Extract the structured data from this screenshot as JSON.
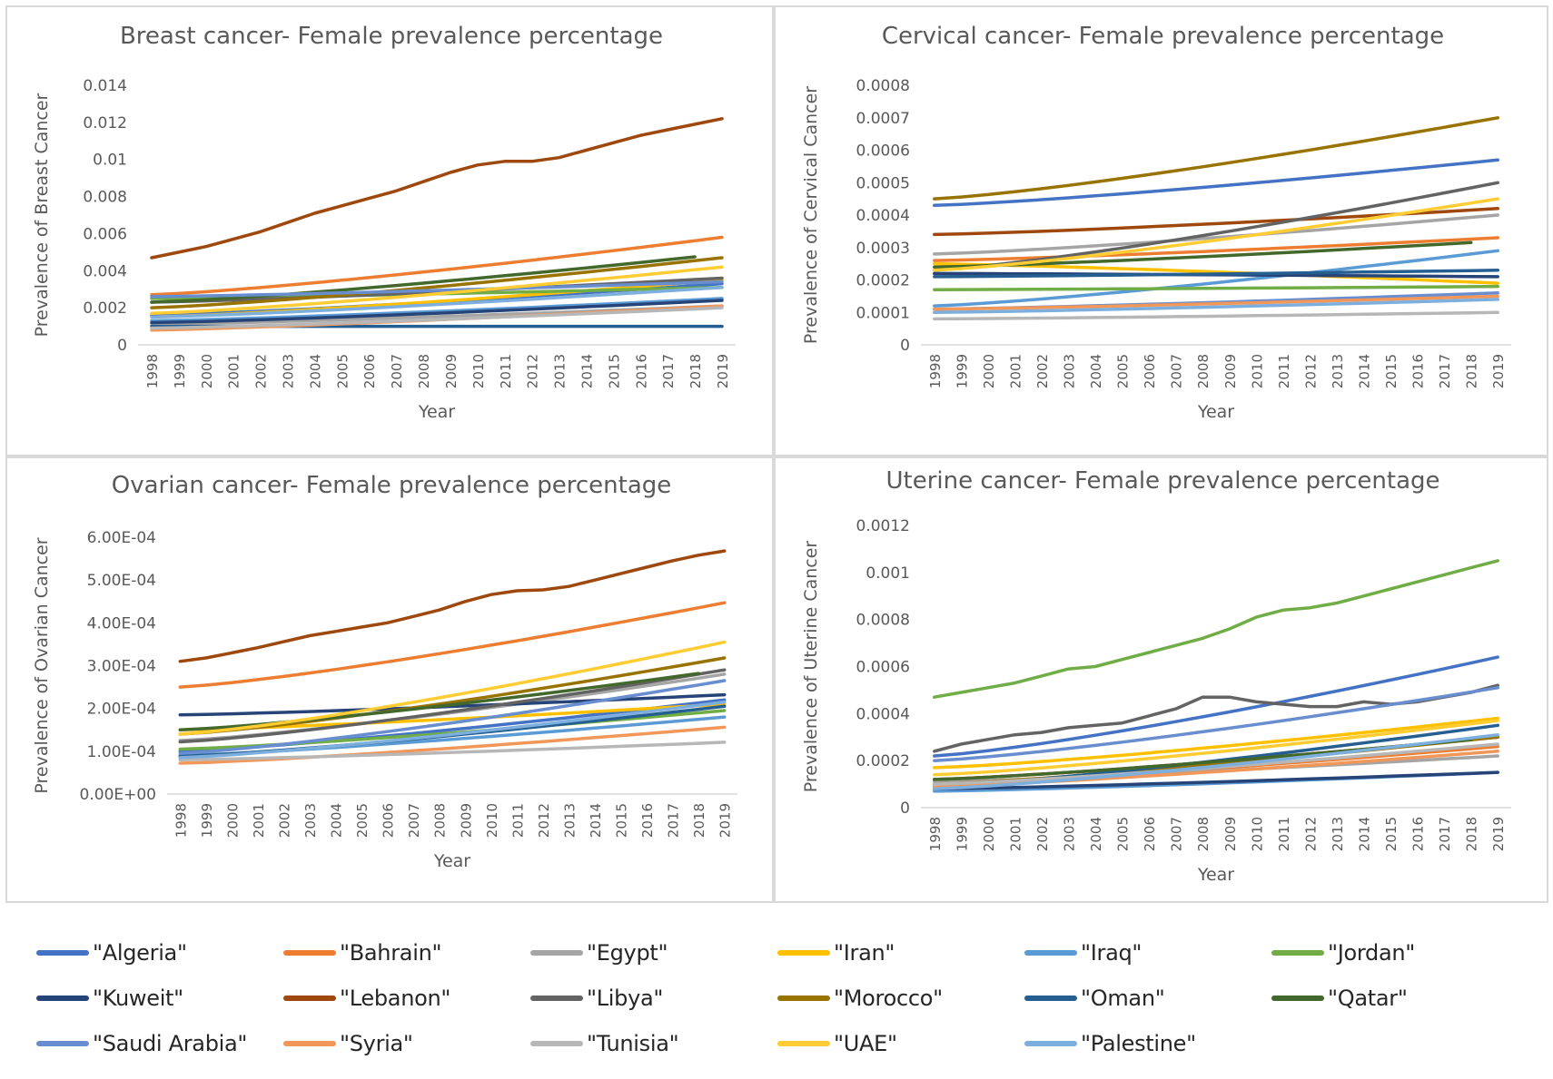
{
  "years": [
    "1998",
    "1999",
    "2000",
    "2001",
    "2002",
    "2003",
    "2004",
    "2005",
    "2006",
    "2007",
    "2008",
    "2009",
    "2010",
    "2011",
    "2012",
    "2013",
    "2014",
    "2015",
    "2016",
    "2017",
    "2018",
    "2019"
  ],
  "countries": [
    {
      "name": "\"Algeria\"",
      "color": "#4472c4"
    },
    {
      "name": "\"Bahrain\"",
      "color": "#ed7d31"
    },
    {
      "name": "\"Egypt\"",
      "color": "#a5a5a5"
    },
    {
      "name": "\"Iran\"",
      "color": "#ffc000"
    },
    {
      "name": "\"Iraq\"",
      "color": "#5b9bd5"
    },
    {
      "name": "\"Jordan\"",
      "color": "#70ad47"
    },
    {
      "name": "\"Kuweit\"",
      "color": "#264478"
    },
    {
      "name": "\"Lebanon\"",
      "color": "#9e480e"
    },
    {
      "name": "\"Libya\"",
      "color": "#636363"
    },
    {
      "name": "\"Morocco\"",
      "color": "#997300"
    },
    {
      "name": "\"Oman\"",
      "color": "#255e91"
    },
    {
      "name": "\"Qatar\"",
      "color": "#43682b"
    },
    {
      "name": "\"Saudi Arabia\"",
      "color": "#698ed0"
    },
    {
      "name": "\"Syria\"",
      "color": "#f1975a"
    },
    {
      "name": "\"Tunisia\"",
      "color": "#b7b7b7"
    },
    {
      "name": "\"UAE\"",
      "color": "#ffcd33"
    },
    {
      "name": "\"Palestine\"",
      "color": "#7cafdd"
    }
  ],
  "chart_data": [
    {
      "type": "line",
      "title": "Breast cancer- Female prevalence percentage",
      "xlabel": "Year",
      "ylabel": "Prevalence of Breast Cancer",
      "ylim": [
        0,
        0.014
      ],
      "yticks": [
        "0",
        "0.002",
        "0.004",
        "0.006",
        "0.008",
        "0.01",
        "0.012",
        "0.014"
      ],
      "series": [
        {
          "name": "\"Algeria\"",
          "start": 0.0016,
          "end": 0.0033
        },
        {
          "name": "\"Bahrain\"",
          "start": 0.0027,
          "end": 0.0058
        },
        {
          "name": "\"Egypt\"",
          "start": 0.0011,
          "end": 0.0021
        },
        {
          "name": "\"Iran\"",
          "start": 0.0015,
          "end": 0.0035
        },
        {
          "name": "\"Iraq\"",
          "start": 0.0013,
          "end": 0.0025
        },
        {
          "name": "\"Jordan\"",
          "start": 0.0025,
          "end": 0.0031
        },
        {
          "name": "\"Kuweit\"",
          "start": 0.0012,
          "end": 0.0024
        },
        {
          "name": "\"Lebanon\"",
          "values": [
            0.0047,
            0.005,
            0.0053,
            0.0057,
            0.0061,
            0.0066,
            0.0071,
            0.0075,
            0.0079,
            0.0083,
            0.0088,
            0.0093,
            0.0097,
            0.0099,
            0.0099,
            0.0101,
            0.0105,
            0.0109,
            0.0113,
            0.0116,
            0.0119,
            0.0122
          ]
        },
        {
          "name": "\"Libya\"",
          "start": 0.0023,
          "end": 0.0036
        },
        {
          "name": "\"Morocco\"",
          "start": 0.002,
          "end": 0.0047
        },
        {
          "name": "\"Oman\"",
          "start": 0.001,
          "end": 0.001
        },
        {
          "name": "\"Qatar\"",
          "start": 0.0023,
          "end": 0.0049,
          "stopAt": 20
        },
        {
          "name": "\"Saudi Arabia\"",
          "start": 0.0026,
          "end": 0.0034
        },
        {
          "name": "\"Syria\"",
          "start": 0.0008,
          "end": 0.0021
        },
        {
          "name": "\"Tunisia\"",
          "start": 0.0009,
          "end": 0.002
        },
        {
          "name": "\"UAE\"",
          "start": 0.0017,
          "end": 0.0042
        },
        {
          "name": "\"Palestine\"",
          "start": 0.0015,
          "end": 0.0031
        }
      ]
    },
    {
      "type": "line",
      "title": "Cervical cancer- Female prevalence percentage",
      "xlabel": "Year",
      "ylabel": "Prevalence of Cervical Cancer",
      "ylim": [
        0,
        0.0008
      ],
      "yticks": [
        "0",
        "0.0001",
        "0.0002",
        "0.0003",
        "0.0004",
        "0.0005",
        "0.0006",
        "0.0007",
        "0.0008"
      ],
      "series": [
        {
          "name": "\"Algeria\"",
          "start": 0.00043,
          "end": 0.00057
        },
        {
          "name": "\"Bahrain\"",
          "start": 0.00026,
          "end": 0.00033
        },
        {
          "name": "\"Egypt\"",
          "start": 0.00028,
          "end": 0.0004
        },
        {
          "name": "\"Iran\"",
          "start": 0.00025,
          "end": 0.00019
        },
        {
          "name": "\"Iraq\"",
          "start": 0.00012,
          "end": 0.00029
        },
        {
          "name": "\"Jordan\"",
          "start": 0.00017,
          "end": 0.00018
        },
        {
          "name": "\"Kuweit\"",
          "start": 0.00022,
          "end": 0.00021
        },
        {
          "name": "\"Lebanon\"",
          "start": 0.00034,
          "end": 0.00042
        },
        {
          "name": "\"Libya\"",
          "start": 0.00023,
          "end": 0.0005
        },
        {
          "name": "\"Morocco\"",
          "start": 0.00045,
          "end": 0.0007
        },
        {
          "name": "\"Oman\"",
          "start": 0.00021,
          "end": 0.00023
        },
        {
          "name": "\"Qatar\"",
          "start": 0.00024,
          "end": 0.00032,
          "stopAt": 20
        },
        {
          "name": "\"Saudi Arabia\"",
          "start": 0.00011,
          "end": 0.00016
        },
        {
          "name": "\"Syria\"",
          "start": 0.00011,
          "end": 0.00015
        },
        {
          "name": "\"Tunisia\"",
          "start": 8e-05,
          "end": 0.0001
        },
        {
          "name": "\"UAE\"",
          "start": 0.00023,
          "end": 0.00045
        },
        {
          "name": "\"Palestine\"",
          "start": 0.0001,
          "end": 0.00014
        }
      ]
    },
    {
      "type": "line",
      "title": "Ovarian cancer- Female prevalence percentage",
      "xlabel": "Year",
      "ylabel": "Prevalence of Ovarian Cancer",
      "ylim": [
        0,
        0.0006
      ],
      "yticks": [
        "0.00E+00",
        "1.00E-04",
        "2.00E-04",
        "3.00E-04",
        "4.00E-04",
        "5.00E-04",
        "6.00E-04"
      ],
      "series": [
        {
          "name": "\"Algeria\"",
          "start": 0.0001,
          "end": 0.00022
        },
        {
          "name": "\"Bahrain\"",
          "start": 0.00025,
          "end": 0.000447
        },
        {
          "name": "\"Egypt\"",
          "start": 0.000125,
          "end": 0.00028
        },
        {
          "name": "\"Iran\"",
          "start": 0.00015,
          "end": 0.00021
        },
        {
          "name": "\"Iraq\"",
          "start": 9e-05,
          "end": 0.00018
        },
        {
          "name": "\"Jordan\"",
          "start": 0.000105,
          "end": 0.000195
        },
        {
          "name": "\"Kuweit\"",
          "start": 0.000185,
          "end": 0.000232
        },
        {
          "name": "\"Lebanon\"",
          "values": [
            0.00031,
            0.000318,
            0.00033,
            0.000342,
            0.000356,
            0.00037,
            0.00038,
            0.00039,
            0.0004,
            0.000415,
            0.00043,
            0.00045,
            0.000466,
            0.000475,
            0.000477,
            0.000485,
            0.0005,
            0.000515,
            0.00053,
            0.000545,
            0.000558,
            0.000568
          ]
        },
        {
          "name": "\"Libya\"",
          "start": 0.000122,
          "end": 0.00029
        },
        {
          "name": "\"Morocco\"",
          "start": 0.00014,
          "end": 0.000318
        },
        {
          "name": "\"Oman\"",
          "start": 8.8e-05,
          "end": 0.000205
        },
        {
          "name": "\"Qatar\"",
          "start": 0.00015,
          "end": 0.00029,
          "stopAt": 20
        },
        {
          "name": "\"Saudi Arabia\"",
          "start": 9.5e-05,
          "end": 0.000265
        },
        {
          "name": "\"Syria\"",
          "start": 7.2e-05,
          "end": 0.000156
        },
        {
          "name": "\"Tunisia\"",
          "start": 8e-05,
          "end": 0.000121
        },
        {
          "name": "\"UAE\"",
          "start": 0.00014,
          "end": 0.000355
        },
        {
          "name": "\"Palestine\"",
          "start": 8.5e-05,
          "end": 0.000215
        }
      ]
    },
    {
      "type": "line",
      "title": "Uterine cancer- Female prevalence percentage",
      "xlabel": "Year",
      "ylabel": "Prevalence of Uterine Cancer",
      "ylim": [
        0,
        0.0012
      ],
      "yticks": [
        "0",
        "0.0002",
        "0.0004",
        "0.0006",
        "0.0008",
        "0.001",
        "0.0012"
      ],
      "series": [
        {
          "name": "\"Algeria\"",
          "start": 0.00022,
          "end": 0.00064
        },
        {
          "name": "\"Bahrain\"",
          "start": 0.0001,
          "end": 0.00026
        },
        {
          "name": "\"Egypt\"",
          "start": 0.00011,
          "end": 0.00022
        },
        {
          "name": "\"Iran\"",
          "start": 0.00017,
          "end": 0.00038
        },
        {
          "name": "\"Iraq\"",
          "start": 7e-05,
          "end": 0.00015
        },
        {
          "name": "\"Jordan\"",
          "values": [
            0.00047,
            0.00049,
            0.00051,
            0.00053,
            0.00056,
            0.00059,
            0.0006,
            0.00063,
            0.00066,
            0.00069,
            0.00072,
            0.00076,
            0.00081,
            0.00084,
            0.00085,
            0.00087,
            0.0009,
            0.00093,
            0.00096,
            0.00099,
            0.00102,
            0.00105
          ]
        },
        {
          "name": "\"Kuweit\"",
          "start": 8e-05,
          "end": 0.00015
        },
        {
          "name": "\"Lebanon\"",
          "start": 0.00012,
          "end": 0.0003
        },
        {
          "name": "\"Libya\"",
          "values": [
            0.00024,
            0.00027,
            0.00029,
            0.00031,
            0.00032,
            0.00034,
            0.00035,
            0.00036,
            0.00039,
            0.00042,
            0.00047,
            0.00047,
            0.00045,
            0.00044,
            0.00043,
            0.00043,
            0.00045,
            0.00044,
            0.00045,
            0.00047,
            0.00049,
            0.00052
          ]
        },
        {
          "name": "\"Morocco\"",
          "start": 0.0001,
          "end": 0.0003
        },
        {
          "name": "\"Oman\"",
          "start": 9e-05,
          "end": 0.00035
        },
        {
          "name": "\"Qatar\"",
          "start": 0.00012,
          "end": 0.0003,
          "stopAt": 20
        },
        {
          "name": "\"Saudi Arabia\"",
          "start": 0.0002,
          "end": 0.00051
        },
        {
          "name": "\"Syria\"",
          "start": 9e-05,
          "end": 0.00024
        },
        {
          "name": "\"Tunisia\"",
          "start": 0.0001,
          "end": 0.00027
        },
        {
          "name": "\"UAE\"",
          "start": 0.00014,
          "end": 0.00037
        },
        {
          "name": "\"Palestine\"",
          "start": 8e-05,
          "end": 0.00031
        }
      ]
    }
  ]
}
